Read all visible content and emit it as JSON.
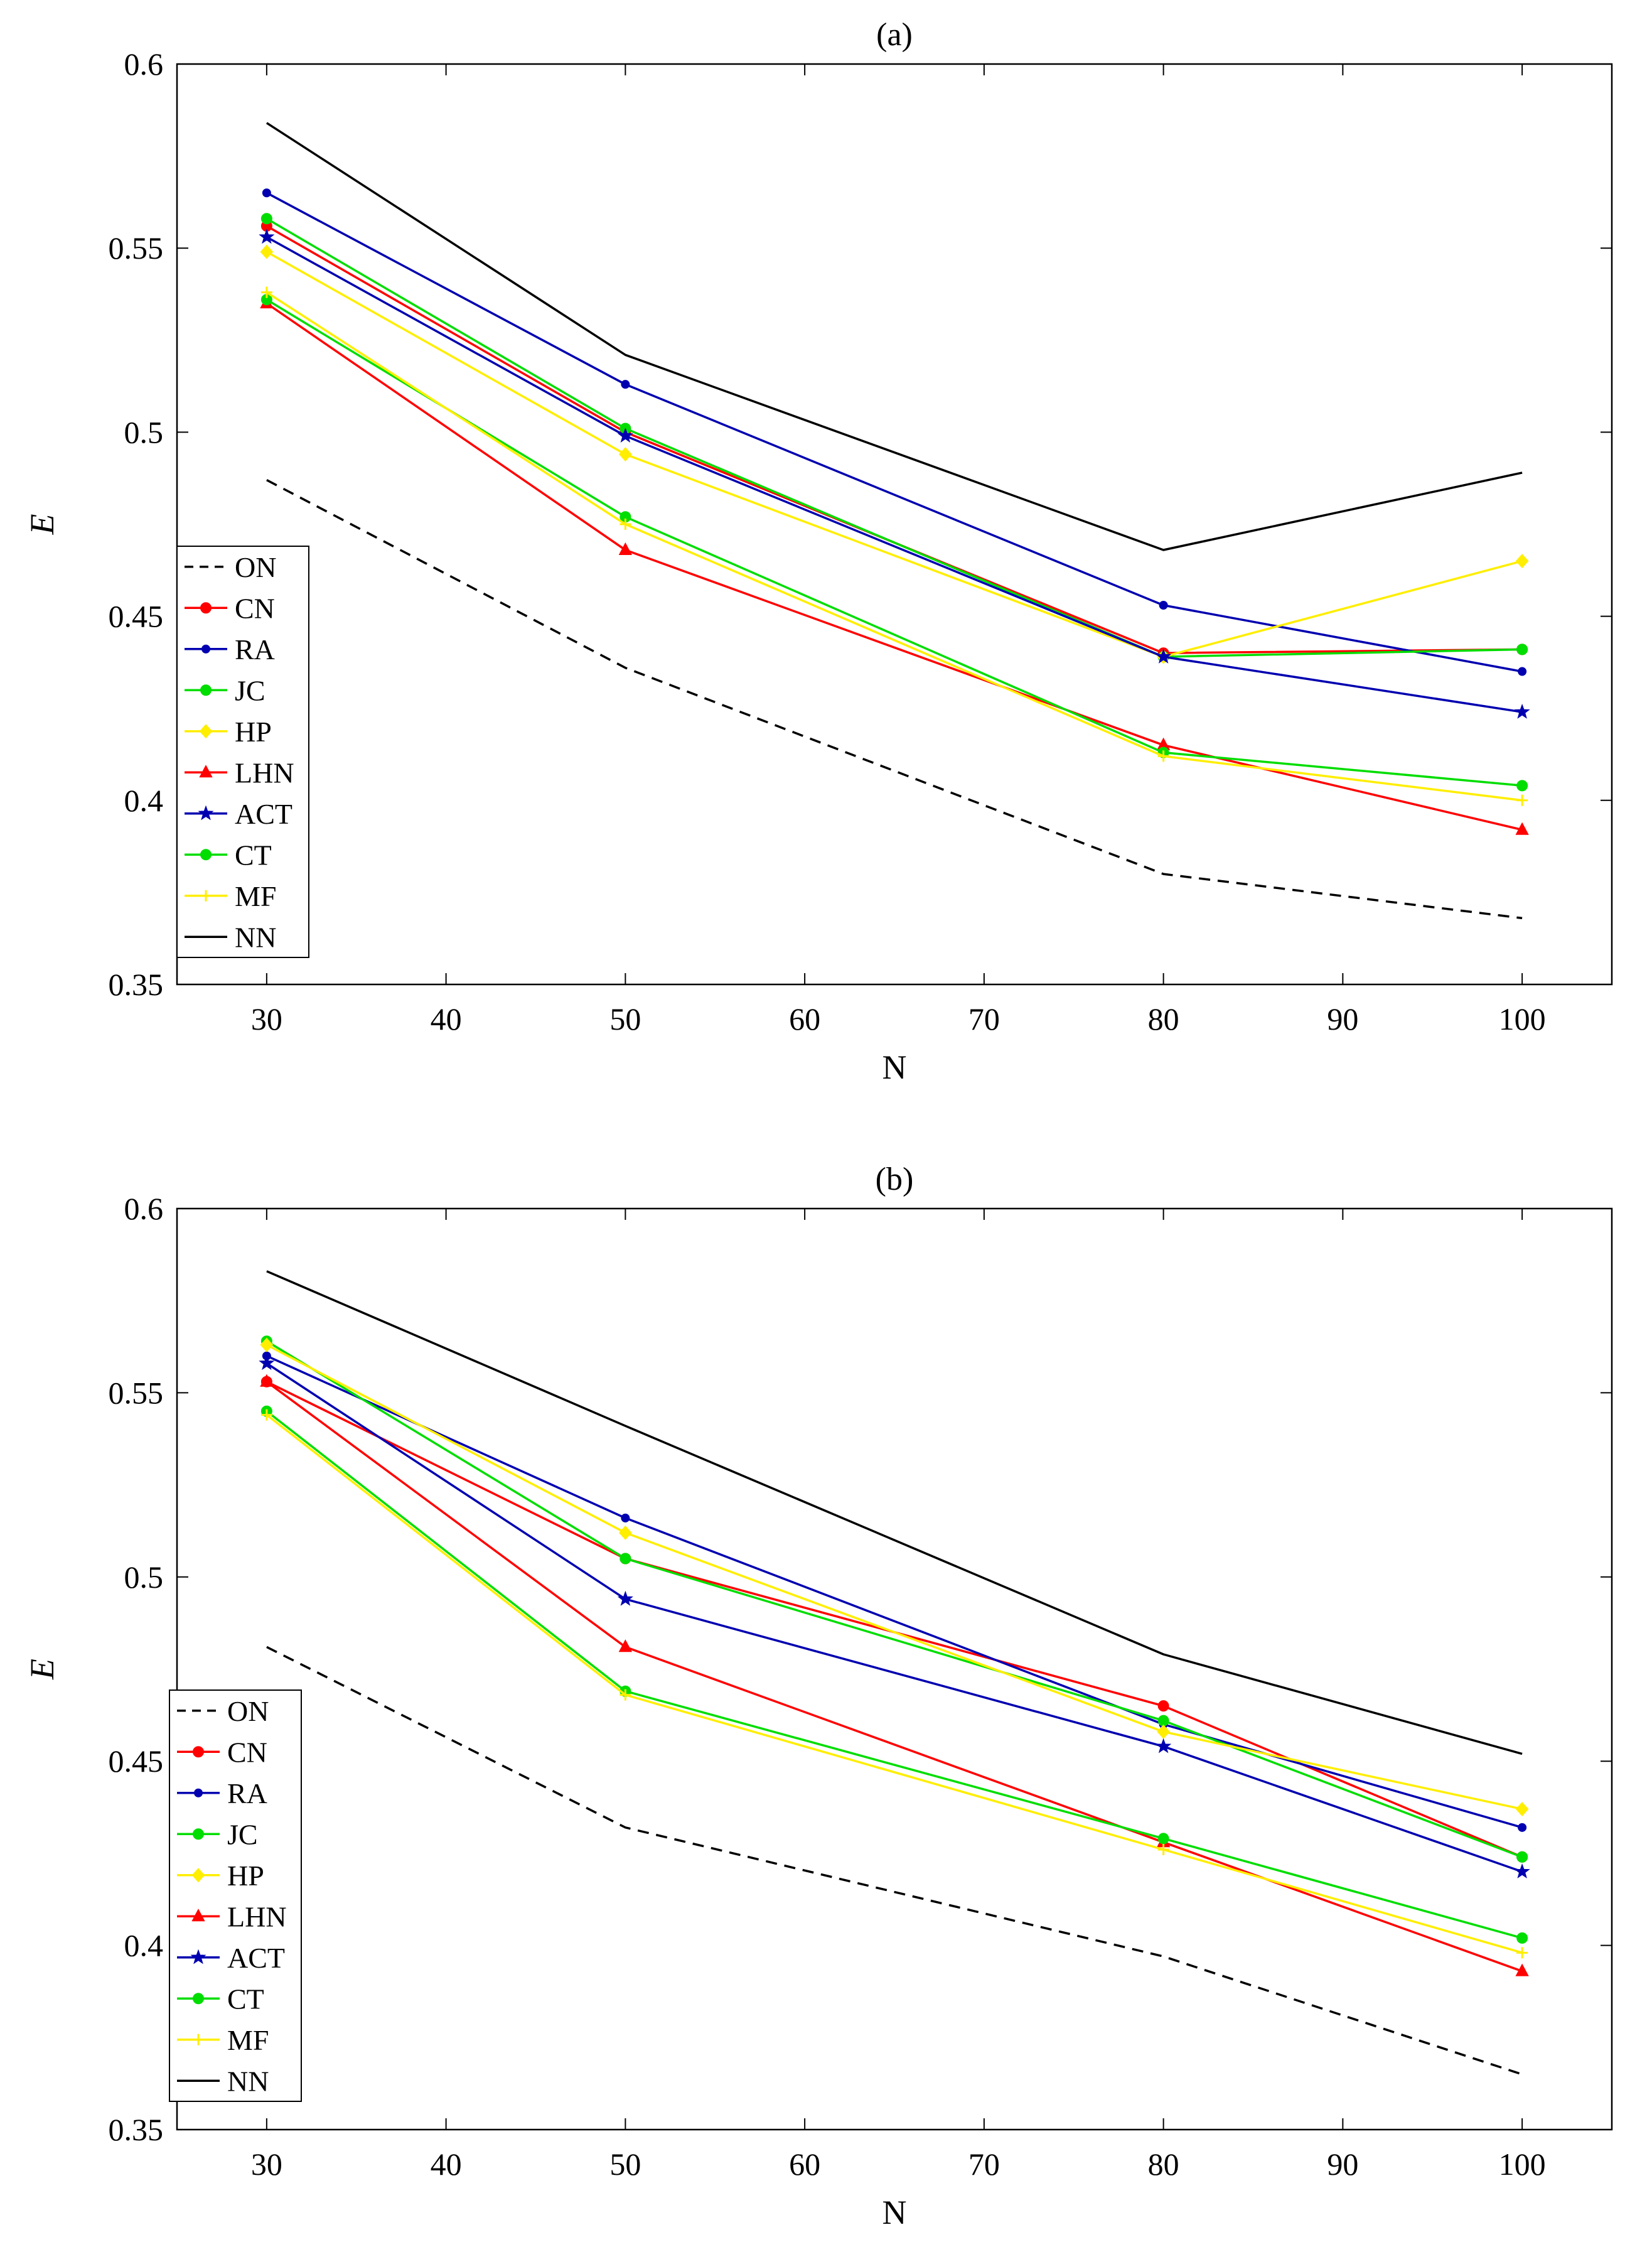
{
  "chart_data": [
    {
      "type": "line",
      "title": "(a)",
      "xlabel": "N",
      "ylabel": "E",
      "xlim": [
        25,
        105
      ],
      "ylim": [
        0.35,
        0.6
      ],
      "xticks": [
        30,
        40,
        50,
        60,
        70,
        80,
        90,
        100
      ],
      "yticks": [
        0.35,
        0.4,
        0.45,
        0.5,
        0.55,
        0.6
      ],
      "ytick_labels": [
        "0.35",
        "0.4",
        "0.45",
        "0.5",
        "0.55",
        "0.6"
      ],
      "grid": false,
      "legend_position": "lower-left",
      "x": [
        30,
        50,
        80,
        100
      ],
      "series": [
        {
          "name": "ON",
          "color": "#000000",
          "dash": "dashed",
          "marker": "none",
          "values": [
            0.487,
            0.436,
            0.38,
            0.368
          ]
        },
        {
          "name": "CN",
          "color": "#ff0000",
          "dash": "solid",
          "marker": "circle",
          "values": [
            0.556,
            0.5,
            0.44,
            0.441
          ]
        },
        {
          "name": "RA",
          "color": "#0000b0",
          "dash": "solid",
          "marker": "dot",
          "values": [
            0.565,
            0.513,
            0.453,
            0.435
          ]
        },
        {
          "name": "JC",
          "color": "#00dd00",
          "dash": "solid",
          "marker": "circle",
          "values": [
            0.558,
            0.501,
            0.439,
            0.441
          ]
        },
        {
          "name": "HP",
          "color": "#ffee00",
          "dash": "solid",
          "marker": "diamond",
          "values": [
            0.549,
            0.494,
            0.439,
            0.465
          ]
        },
        {
          "name": "LHN",
          "color": "#ff0000",
          "dash": "solid",
          "marker": "triangle",
          "values": [
            0.535,
            0.468,
            0.415,
            0.392
          ]
        },
        {
          "name": "ACT",
          "color": "#0000b0",
          "dash": "solid",
          "marker": "star",
          "values": [
            0.553,
            0.499,
            0.439,
            0.424
          ]
        },
        {
          "name": "CT",
          "color": "#00dd00",
          "dash": "solid",
          "marker": "circle",
          "values": [
            0.536,
            0.477,
            0.413,
            0.404
          ]
        },
        {
          "name": "MF",
          "color": "#ffee00",
          "dash": "solid",
          "marker": "plus",
          "values": [
            0.538,
            0.475,
            0.412,
            0.4
          ]
        },
        {
          "name": "NN",
          "color": "#000000",
          "dash": "solid",
          "marker": "none",
          "values": [
            0.584,
            0.521,
            0.468,
            0.489
          ]
        }
      ]
    },
    {
      "type": "line",
      "title": "(b)",
      "xlabel": "N",
      "ylabel": "E",
      "xlim": [
        25,
        105
      ],
      "ylim": [
        0.35,
        0.6
      ],
      "xticks": [
        30,
        40,
        50,
        60,
        70,
        80,
        90,
        100
      ],
      "yticks": [
        0.35,
        0.4,
        0.45,
        0.5,
        0.55,
        0.6
      ],
      "ytick_labels": [
        "0.35",
        "0.4",
        "0.45",
        "0.5",
        "0.55",
        "0.6"
      ],
      "grid": false,
      "legend_position": "lower-left",
      "x": [
        30,
        50,
        80,
        100
      ],
      "series": [
        {
          "name": "ON",
          "color": "#000000",
          "dash": "dashed",
          "marker": "none",
          "values": [
            0.481,
            0.432,
            0.397,
            0.365
          ]
        },
        {
          "name": "CN",
          "color": "#ff0000",
          "dash": "solid",
          "marker": "circle",
          "values": [
            0.553,
            0.505,
            0.465,
            0.424
          ]
        },
        {
          "name": "RA",
          "color": "#0000b0",
          "dash": "solid",
          "marker": "dot",
          "values": [
            0.56,
            0.516,
            0.46,
            0.432
          ]
        },
        {
          "name": "JC",
          "color": "#00dd00",
          "dash": "solid",
          "marker": "circle",
          "values": [
            0.564,
            0.505,
            0.461,
            0.424
          ]
        },
        {
          "name": "HP",
          "color": "#ffee00",
          "dash": "solid",
          "marker": "diamond",
          "values": [
            0.563,
            0.512,
            0.458,
            0.437
          ]
        },
        {
          "name": "LHN",
          "color": "#ff0000",
          "dash": "solid",
          "marker": "triangle",
          "values": [
            0.553,
            0.481,
            0.428,
            0.393
          ]
        },
        {
          "name": "ACT",
          "color": "#0000b0",
          "dash": "solid",
          "marker": "star",
          "values": [
            0.558,
            0.494,
            0.454,
            0.42
          ]
        },
        {
          "name": "CT",
          "color": "#00dd00",
          "dash": "solid",
          "marker": "circle",
          "values": [
            0.545,
            0.469,
            0.429,
            0.402
          ]
        },
        {
          "name": "MF",
          "color": "#ffee00",
          "dash": "solid",
          "marker": "plus",
          "values": [
            0.544,
            0.468,
            0.426,
            0.398
          ]
        },
        {
          "name": "NN",
          "color": "#000000",
          "dash": "solid",
          "marker": "none",
          "values": [
            0.583,
            0.541,
            0.479,
            0.452
          ]
        }
      ]
    }
  ]
}
